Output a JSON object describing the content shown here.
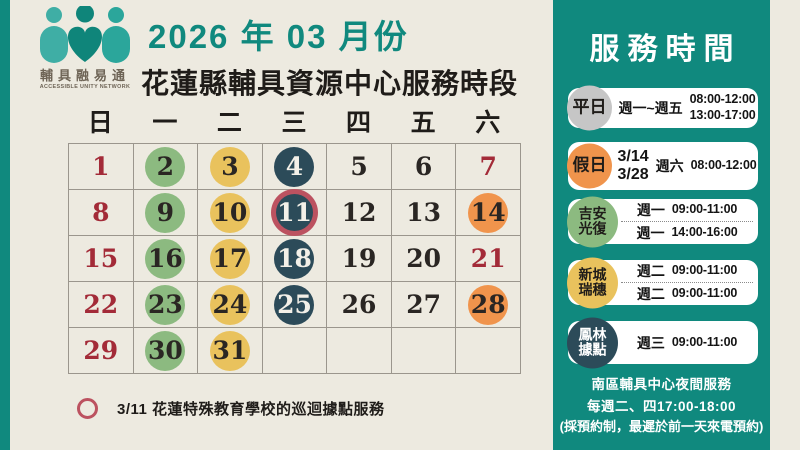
{
  "palette": {
    "teal": "#10897E",
    "cream": "#EDEAE0",
    "green": "#8CBA80",
    "yellow": "#E9C25D",
    "darkslate": "#2C4B59",
    "orange": "#F0944C",
    "red": "#A32B38",
    "ring": "#BC5260",
    "gray": "#C6C6C6",
    "ink": "#2A2623",
    "grid": "#9B968D",
    "logotext": "#6E6456"
  },
  "logo": {
    "name": "輔具融易通",
    "subname": "ACCESSIBLE UNITY NETWORK"
  },
  "header": {
    "month_title": "2026 年 03 月份",
    "subtitle": "花蓮縣輔具資源中心服務時段"
  },
  "calendar": {
    "weekdays": [
      "日",
      "一",
      "二",
      "三",
      "四",
      "五",
      "六"
    ],
    "days": [
      {
        "num": "1",
        "type": "red"
      },
      {
        "num": "2",
        "type": "green"
      },
      {
        "num": "3",
        "type": "yellow"
      },
      {
        "num": "4",
        "type": "dark"
      },
      {
        "num": "5",
        "type": "plain"
      },
      {
        "num": "6",
        "type": "plain"
      },
      {
        "num": "7",
        "type": "red"
      },
      {
        "num": "8",
        "type": "red"
      },
      {
        "num": "9",
        "type": "green"
      },
      {
        "num": "10",
        "type": "yellow"
      },
      {
        "num": "11",
        "type": "dark-ring"
      },
      {
        "num": "12",
        "type": "plain"
      },
      {
        "num": "13",
        "type": "plain"
      },
      {
        "num": "14",
        "type": "orange"
      },
      {
        "num": "15",
        "type": "red"
      },
      {
        "num": "16",
        "type": "green"
      },
      {
        "num": "17",
        "type": "yellow"
      },
      {
        "num": "18",
        "type": "dark"
      },
      {
        "num": "19",
        "type": "plain"
      },
      {
        "num": "20",
        "type": "plain"
      },
      {
        "num": "21",
        "type": "red"
      },
      {
        "num": "22",
        "type": "red"
      },
      {
        "num": "23",
        "type": "green"
      },
      {
        "num": "24",
        "type": "yellow"
      },
      {
        "num": "25",
        "type": "dark"
      },
      {
        "num": "26",
        "type": "plain"
      },
      {
        "num": "27",
        "type": "plain"
      },
      {
        "num": "28",
        "type": "orange"
      },
      {
        "num": "29",
        "type": "red"
      },
      {
        "num": "30",
        "type": "green"
      },
      {
        "num": "31",
        "type": "yellow"
      },
      {
        "num": "",
        "type": "empty"
      },
      {
        "num": "",
        "type": "empty"
      },
      {
        "num": "",
        "type": "empty"
      },
      {
        "num": "",
        "type": "empty"
      }
    ]
  },
  "legend": {
    "note": "3/11 花蓮特殊教育學校的巡迴據點服務"
  },
  "sidebar": {
    "title": "服務時間",
    "cards": [
      {
        "id": "weekday",
        "color": "gray",
        "label_lines": [
          "平日"
        ],
        "rows": [
          {
            "day": "週一~週五",
            "times": [
              "08:00-12:00",
              "13:00-17:00"
            ]
          }
        ]
      },
      {
        "id": "holiday",
        "color": "orange",
        "label_lines": [
          "假日"
        ],
        "rows": [
          {
            "dates": [
              "3/14",
              "3/28"
            ],
            "day": "週六",
            "times": [
              "08:00-12:00"
            ]
          }
        ]
      },
      {
        "id": "jian-guangfu",
        "color": "green",
        "label_lines": [
          "吉安",
          "光復"
        ],
        "rows": [
          {
            "day": "週一",
            "times": [
              "09:00-11:00"
            ]
          },
          {
            "day": "週一",
            "times": [
              "14:00-16:00"
            ]
          }
        ]
      },
      {
        "id": "xincheng-ruisui",
        "color": "yellow",
        "label_lines": [
          "新城",
          "瑞穗"
        ],
        "rows": [
          {
            "day": "週二",
            "times": [
              "09:00-11:00"
            ]
          },
          {
            "day": "週二",
            "times": [
              "09:00-11:00"
            ]
          }
        ]
      },
      {
        "id": "fenglin",
        "color": "dark",
        "label_lines": [
          "鳳林",
          "據點"
        ],
        "rows": [
          {
            "day": "週三",
            "times": [
              "09:00-11:00"
            ]
          }
        ]
      }
    ],
    "footer_lines": [
      "南區輔具中心夜間服務",
      "每週二、四17:00-18:00",
      "(採預約制，最遲於前一天來電預約)"
    ]
  }
}
